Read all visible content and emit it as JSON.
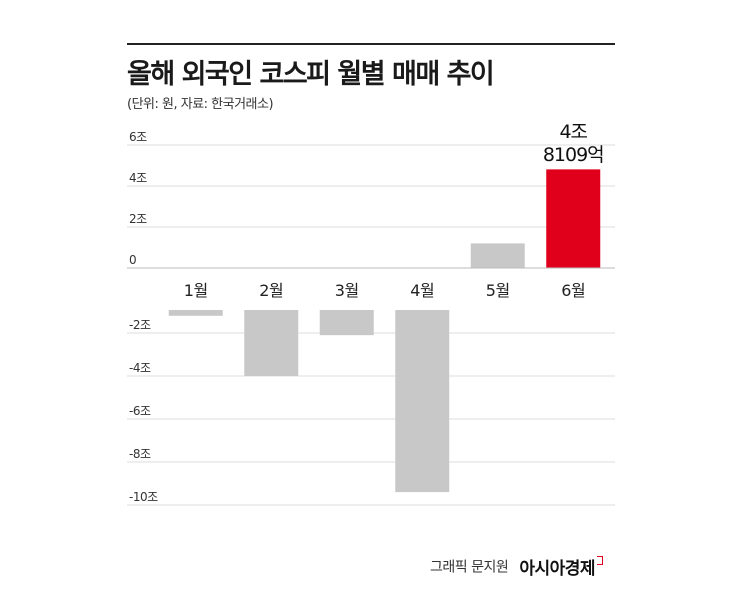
{
  "title": "올해 외국인 코스피 월별 매매 추이",
  "subtitle": "(단위: 원, 자료: 한국거래소)",
  "credit": "그래픽 문지원",
  "brand": "아시아경제",
  "chart_data": {
    "type": "bar",
    "title": "올해 외국인 코스피 월별 매매 추이",
    "unit": "원",
    "source": "한국거래소",
    "categories": [
      "1월",
      "2월",
      "3월",
      "4월",
      "5월",
      "6월"
    ],
    "values": [
      -1.2,
      -4.0,
      -2.1,
      -9.4,
      1.2,
      4.8109
    ],
    "ylim": [
      -10,
      6
    ],
    "yticks": [
      6,
      4,
      2,
      0,
      -2,
      -4,
      -6,
      -8,
      -10
    ],
    "ytick_labels": [
      "6조",
      "4조",
      "2조",
      "0",
      "-2조",
      "-4조",
      "-6조",
      "-8조",
      "-10조"
    ],
    "highlight_index": 5,
    "annotation": {
      "line1": "4조",
      "line2": "8109억"
    },
    "grid": true,
    "colors": {
      "normal": "#c8c8c8",
      "highlight": "#e0001b",
      "grid": "#dedede"
    }
  }
}
